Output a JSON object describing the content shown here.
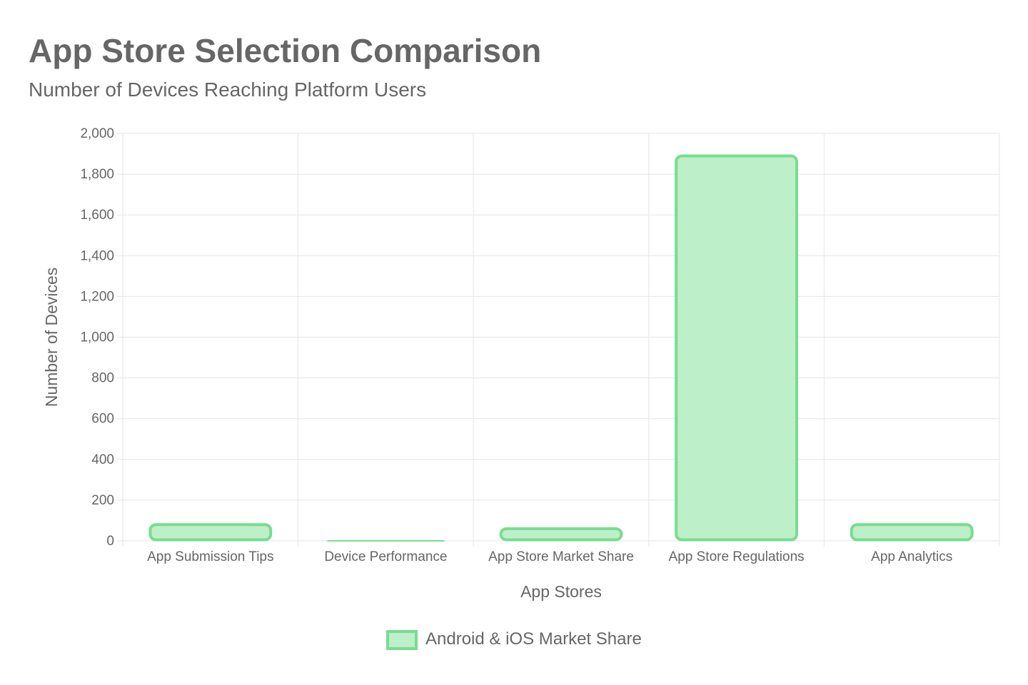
{
  "chart_data": {
    "type": "bar",
    "title": "App Store Selection Comparison",
    "subtitle": "Number of Devices Reaching Platform Users",
    "xlabel": "App Stores",
    "ylabel": "Number of Devices",
    "categories": [
      "App Submission Tips",
      "Device Performance",
      "App Store Market Share",
      "App Store Regulations",
      "App Analytics"
    ],
    "series": [
      {
        "name": "Android & iOS Market Share",
        "values": [
          85,
          0,
          65,
          1895,
          85
        ],
        "fill_color": "#bdefc9",
        "border_color": "#77dd8e"
      }
    ],
    "ylim": [
      0,
      2000
    ],
    "yticks": [
      0,
      200,
      400,
      600,
      800,
      1000,
      1200,
      1400,
      1600,
      1800,
      2000
    ],
    "grid": true,
    "legend_position": "bottom"
  }
}
